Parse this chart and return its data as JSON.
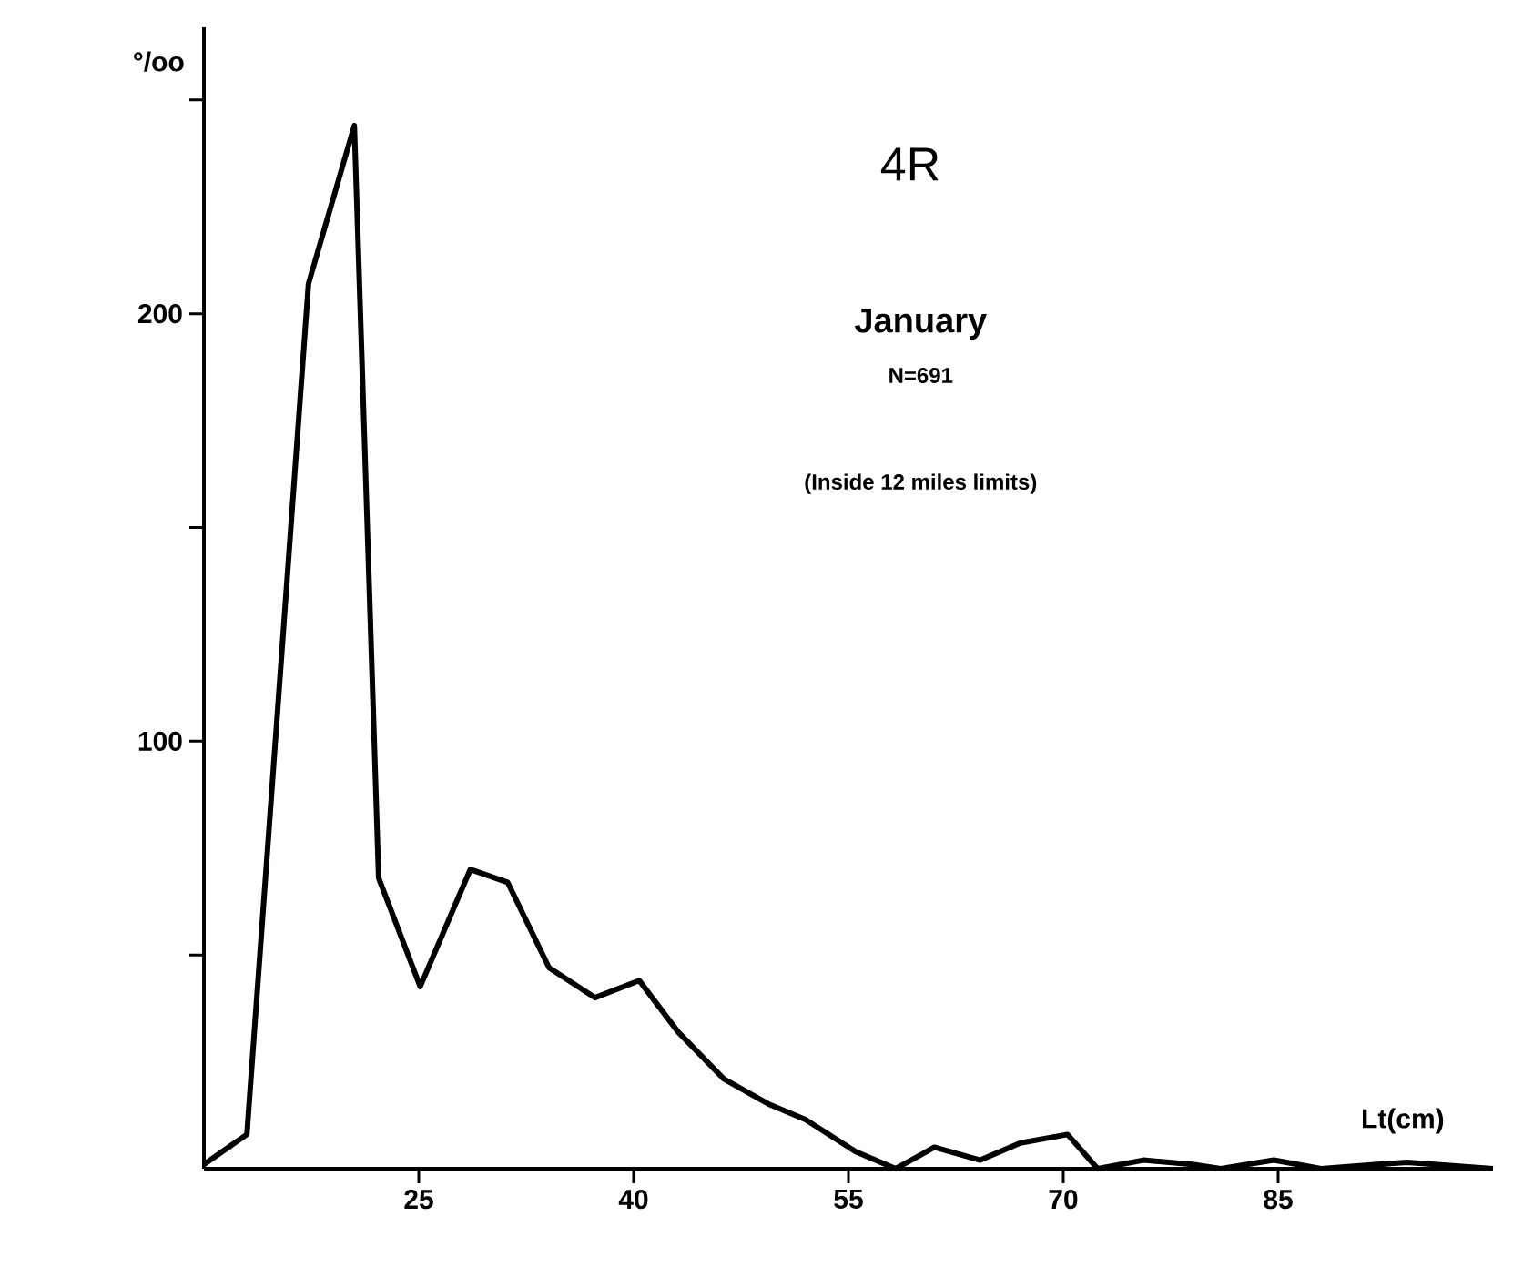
{
  "chart_data": {
    "type": "line",
    "title": "4R",
    "subtitle": "January",
    "annotations": [
      "N=691",
      "(Inside 12 miles limits)"
    ],
    "xlabel": "Lt(cm)",
    "ylabel": "°/oo",
    "x": [
      10,
      13,
      17.3,
      20.5,
      22.2,
      25.1,
      28.6,
      31.2,
      34.1,
      37.3,
      40.4,
      43.1,
      46.3,
      49.5,
      52,
      55.5,
      58.3,
      61,
      64.2,
      67,
      70.3,
      72.4,
      75.6,
      79,
      81,
      84.7,
      88,
      94,
      100
    ],
    "series": [
      {
        "color": "#000000",
        "values": [
          1,
          8,
          207,
          244,
          68,
          42.6,
          70,
          67,
          47,
          40,
          44,
          32,
          21,
          15,
          11.5,
          4,
          0,
          5,
          2,
          6,
          8,
          0,
          2,
          1,
          0,
          2,
          0,
          1.5,
          0
        ]
      }
    ],
    "xlim": [
      10,
      100
    ],
    "ylim": [
      0,
      267
    ],
    "xticks": [
      25,
      40,
      55,
      70,
      85
    ],
    "yticks": [
      {
        "value": 50,
        "label": null
      },
      100,
      {
        "value": 150,
        "label": null
      },
      200,
      {
        "value": 250,
        "label": null
      }
    ]
  }
}
